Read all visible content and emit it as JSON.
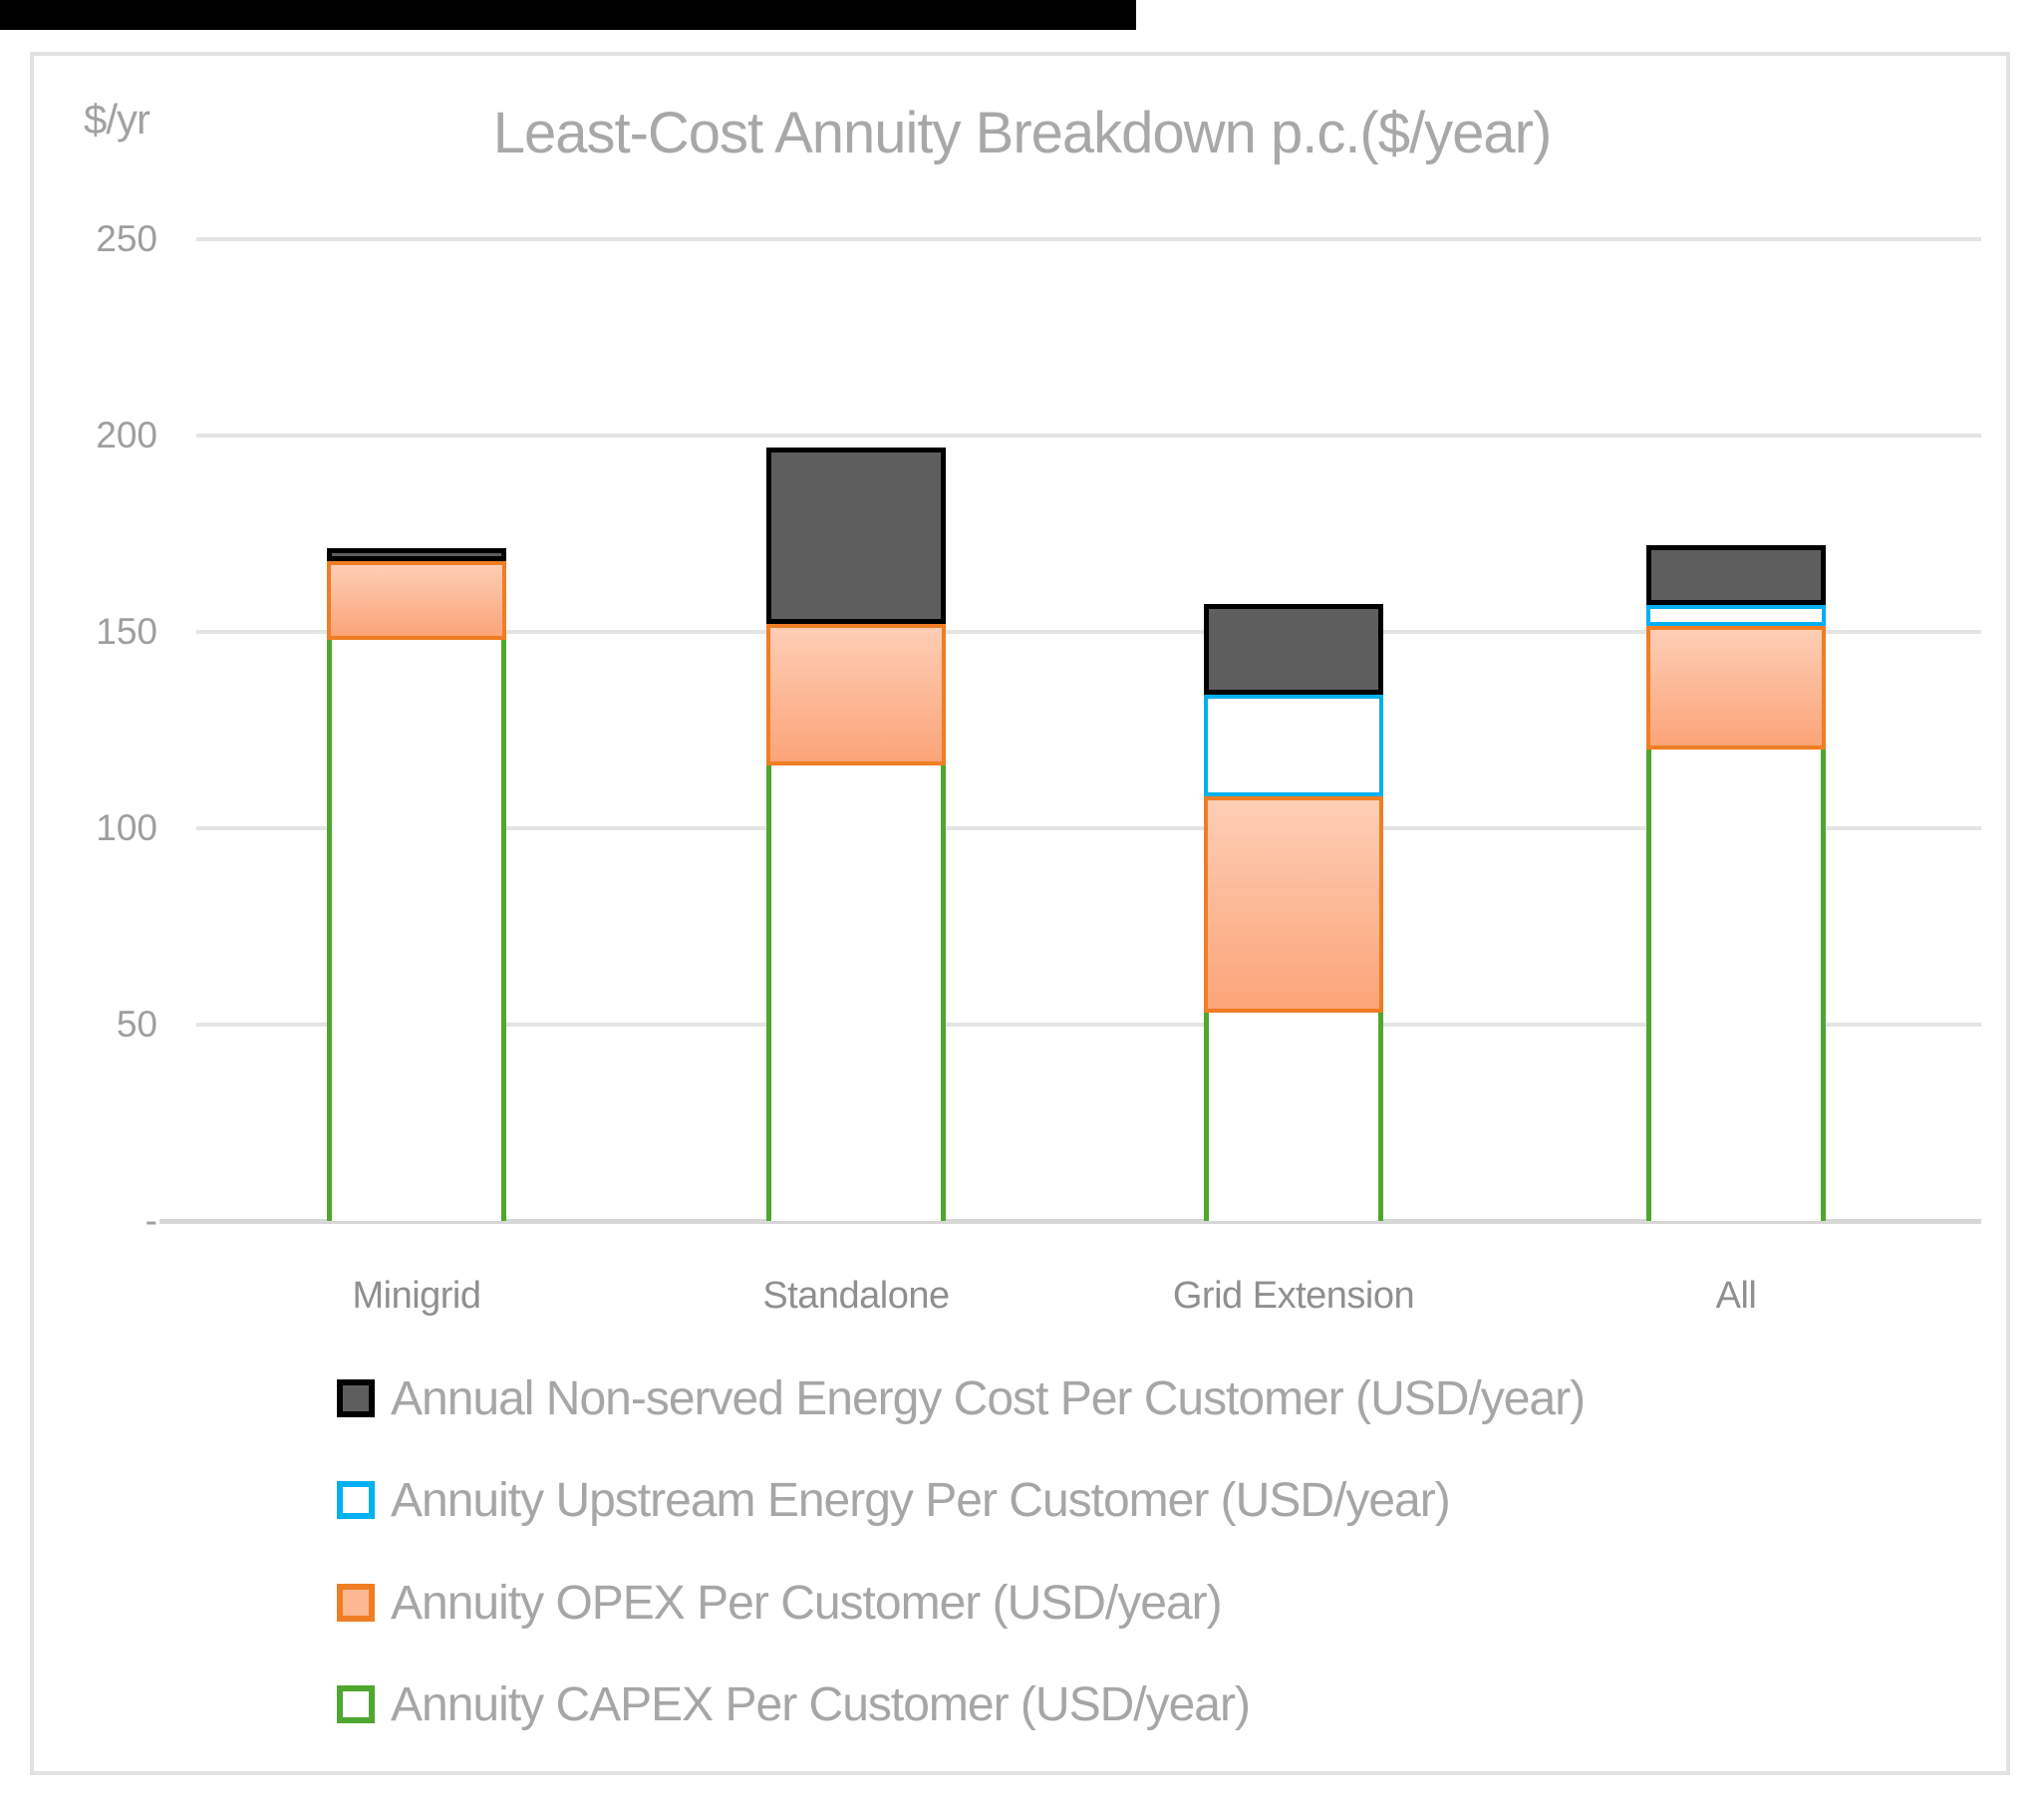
{
  "chart_data": {
    "type": "bar",
    "stacked": true,
    "title": "Least-Cost Annuity Breakdown p.c.($/year)",
    "y_unit": "$/yr",
    "categories": [
      "Minigrid",
      "Standalone",
      "Grid Extension",
      "All"
    ],
    "series": [
      {
        "key": "capex",
        "name": "Annuity CAPEX Per Customer (USD/year)",
        "values": [
          148,
          116,
          53,
          120
        ]
      },
      {
        "key": "opex",
        "name": "Annuity OPEX Per Customer (USD/year)",
        "values": [
          20,
          36,
          55,
          31.5
        ]
      },
      {
        "key": "upstream",
        "name": "Annuity Upstream Energy Per Customer (USD/year)",
        "values": [
          0,
          0,
          26,
          5.3
        ]
      },
      {
        "key": "nonserved",
        "name": "Annual Non-served Energy Cost Per Customer (USD/year)",
        "values": [
          3.3,
          45,
          23,
          15.2
        ]
      }
    ],
    "y_ticks": [
      {
        "label": "250",
        "value": 250
      },
      {
        "label": "200",
        "value": 200
      },
      {
        "label": "150",
        "value": 150
      },
      {
        "label": "100",
        "value": 100
      },
      {
        "label": "50",
        "value": 50
      },
      {
        "label": "-",
        "value": 0
      }
    ],
    "ylim": [
      0,
      250
    ],
    "grid": true,
    "legend_position": "bottom",
    "legend_order": [
      "nonserved",
      "upstream",
      "opex",
      "capex"
    ]
  },
  "colors": {
    "capex_border": "#4EA72E",
    "opex_border": "#F07D23",
    "opex_fill_top": "#FDCEB5",
    "opex_fill_bottom": "#FCA478",
    "upstream_border": "#00B0F0",
    "nonserved_fill": "#5E5E5E",
    "nonserved_border": "#000000",
    "gridline": "#E4E4E4",
    "frame_border": "#E2E2E2",
    "text_gray": "#A6A6A6"
  }
}
